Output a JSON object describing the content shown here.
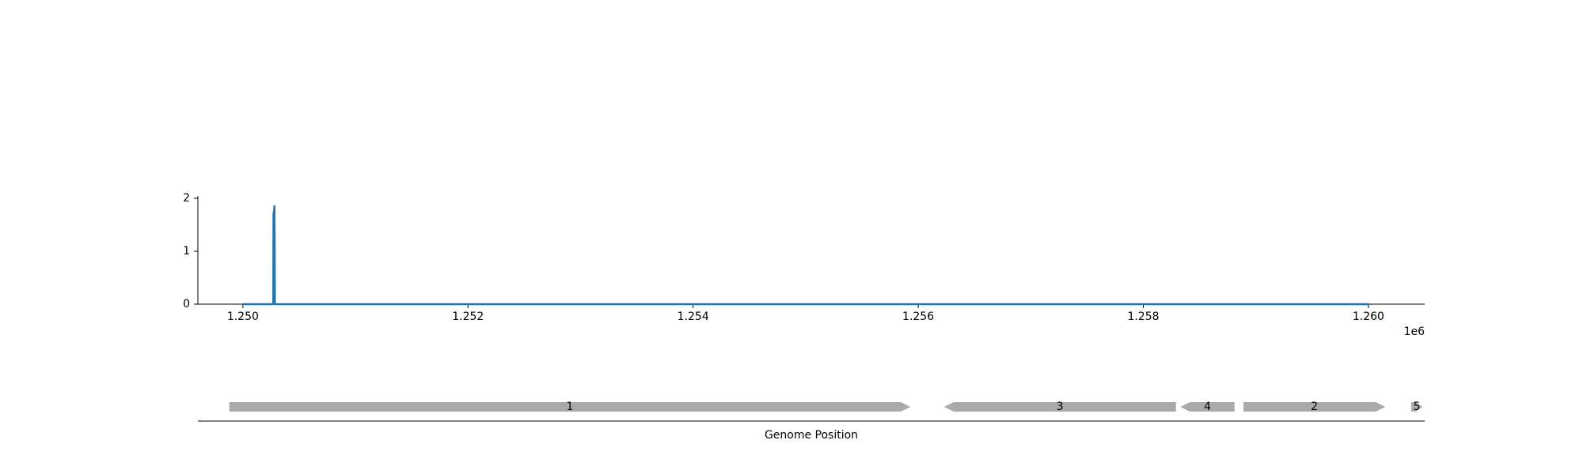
{
  "chart_data": [
    {
      "type": "line",
      "title": "",
      "xlabel": "",
      "ylabel": "",
      "x_offset_label": "1e6",
      "xlim": [
        1249600,
        1260500
      ],
      "ylim": [
        0,
        2
      ],
      "xticks": [
        1250000,
        1252000,
        1254000,
        1256000,
        1258000,
        1260000
      ],
      "xtick_labels": [
        "1.250",
        "1.252",
        "1.254",
        "1.256",
        "1.258",
        "1.260"
      ],
      "yticks": [
        0,
        1,
        2
      ],
      "ytick_labels": [
        "0",
        "1",
        "2"
      ],
      "grid": false,
      "color": "#1f77b4",
      "series": [
        {
          "x": [
            1250000,
            1250270,
            1250272,
            1250274,
            1250276,
            1250278,
            1250280,
            1250282,
            1250284,
            1250290,
            1260000
          ],
          "y": [
            0,
            0,
            1.72,
            1.0,
            1.78,
            1.5,
            1.85,
            1.2,
            0,
            0,
            0
          ]
        }
      ]
    },
    {
      "type": "gene_track",
      "xlabel": "Genome Position",
      "xlim": [
        1249600,
        1260500
      ],
      "color": "#aaaaaa",
      "genes": [
        {
          "label": "1",
          "start": 1249880,
          "end": 1255930,
          "strand": "+"
        },
        {
          "label": "3",
          "start": 1256230,
          "end": 1258290,
          "strand": "-"
        },
        {
          "label": "4",
          "start": 1258330,
          "end": 1258810,
          "strand": "-"
        },
        {
          "label": "2",
          "start": 1258890,
          "end": 1260150,
          "strand": "+"
        },
        {
          "label": "5",
          "start": 1260380,
          "end": 1260480,
          "strand": "+"
        }
      ]
    }
  ]
}
